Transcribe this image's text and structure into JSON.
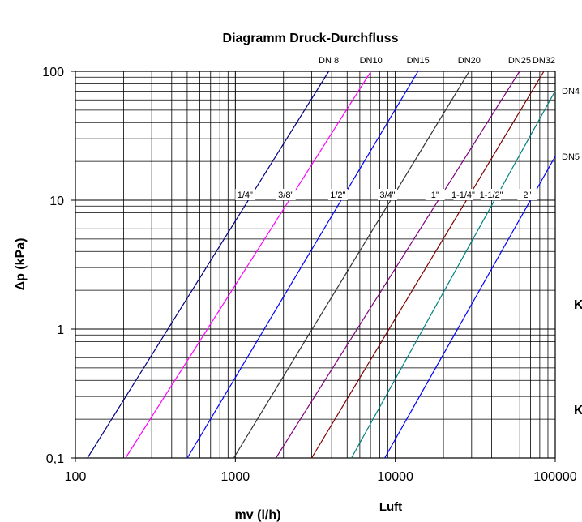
{
  "chart_data": {
    "type": "line",
    "title": "Diagramm Druck-Durchfluss",
    "x_label": "mv (l/h)",
    "y_label": "Δp (kPa)",
    "subtitle": "Luft",
    "xlog": true,
    "ylog": true,
    "grid": true,
    "minor_grid": true,
    "xlim": [
      100,
      100000
    ],
    "ylim": [
      0.1,
      100
    ],
    "xticks": [
      100,
      1000,
      10000,
      100000
    ],
    "yticks": [
      {
        "value": 0.1,
        "label": "0,1"
      },
      1,
      10,
      100
    ],
    "series": [
      {
        "name": "DN 8",
        "inch": "1/4\"",
        "color": "#000080",
        "x": [
          119,
          3837
        ],
        "values": [
          0.1,
          100
        ]
      },
      {
        "name": "DN10",
        "inch": "3/8\"",
        "color": "#ff00ff",
        "x": [
          206,
          7046
        ],
        "values": [
          0.1,
          100
        ]
      },
      {
        "name": "DN15",
        "inch": "1/2\"",
        "color": "#0000ff",
        "x": [
          501,
          13870
        ],
        "values": [
          0.1,
          100
        ]
      },
      {
        "name": "DN20",
        "inch": "3/4\"",
        "color": "#333333",
        "x": [
          977,
          28970
        ],
        "values": [
          0.1,
          100
        ]
      },
      {
        "name": "DN25",
        "inch": "1\"",
        "color": "#800080",
        "x": [
          1794,
          59800
        ],
        "values": [
          0.1,
          100
        ]
      },
      {
        "name": "DN32",
        "inch": "1-1/4\"",
        "color": "#800000",
        "x": [
          3000,
          84900
        ],
        "values": [
          0.1,
          100
        ]
      },
      {
        "name": "DN4",
        "inch": "1-1/2\"",
        "color": "#008080",
        "x": [
          5320,
          100000
        ],
        "values": [
          0.1,
          70.6
        ]
      },
      {
        "name": "DN5",
        "inch": "2\"",
        "color": "#0000ff",
        "x": [
          8590,
          100000
        ],
        "values": [
          0.1,
          21.9
        ]
      }
    ],
    "side_labels": [
      "K",
      "K"
    ]
  }
}
